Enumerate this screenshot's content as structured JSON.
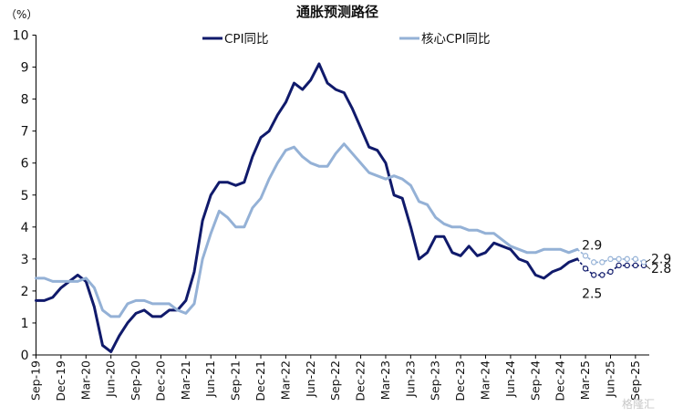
{
  "chart_data": {
    "type": "line",
    "title": "通胀预测路径",
    "unit_label": "（%）",
    "ylim": [
      0,
      10
    ],
    "yticks": [
      0,
      1,
      2,
      3,
      4,
      5,
      6,
      7,
      8,
      9,
      10
    ],
    "x_tick_labels": [
      "Sep-19",
      "Dec-19",
      "Mar-20",
      "Jun-20",
      "Sep-20",
      "Dec-20",
      "Mar-21",
      "Jun-21",
      "Sep-21",
      "Dec-21",
      "Mar-22",
      "Jun-22",
      "Sep-22",
      "Dec-22",
      "Mar-23",
      "Jun-23",
      "Sep-23",
      "Dec-23",
      "Mar-24",
      "Jun-24",
      "Sep-24",
      "Dec-24",
      "Mar-25",
      "Jun-25",
      "Sep-25"
    ],
    "start_month": "Sep-19",
    "legend": {
      "position": "top",
      "entries": [
        "CPI同比",
        "核心CPI同比"
      ]
    },
    "series": [
      {
        "name": "CPI同比",
        "color": "#101a6b",
        "values": [
          1.7,
          1.7,
          1.8,
          2.1,
          2.3,
          2.5,
          2.3,
          1.5,
          0.3,
          0.1,
          0.6,
          1.0,
          1.3,
          1.4,
          1.2,
          1.2,
          1.4,
          1.4,
          1.7,
          2.6,
          4.2,
          5.0,
          5.4,
          5.4,
          5.3,
          5.4,
          6.2,
          6.8,
          7.0,
          7.5,
          7.9,
          8.5,
          8.3,
          8.6,
          9.1,
          8.5,
          8.3,
          8.2,
          7.7,
          7.1,
          6.5,
          6.4,
          6.0,
          5.0,
          4.9,
          4.0,
          3.0,
          3.2,
          3.7,
          3.7,
          3.2,
          3.1,
          3.4,
          3.1,
          3.2,
          3.5,
          3.4,
          3.3,
          3.0,
          2.9,
          2.5,
          2.4,
          2.6,
          2.7,
          2.9,
          3.0
        ],
        "forecast": [
          3.0,
          2.7,
          2.5,
          2.5,
          2.6,
          2.8,
          2.8,
          2.8,
          2.8
        ]
      },
      {
        "name": "核心CPI同比",
        "color": "#94b1d6",
        "values": [
          2.4,
          2.4,
          2.3,
          2.3,
          2.3,
          2.3,
          2.4,
          2.1,
          1.4,
          1.2,
          1.2,
          1.6,
          1.7,
          1.7,
          1.6,
          1.6,
          1.6,
          1.4,
          1.3,
          1.6,
          3.0,
          3.8,
          4.5,
          4.3,
          4.0,
          4.0,
          4.6,
          4.9,
          5.5,
          6.0,
          6.4,
          6.5,
          6.2,
          6.0,
          5.9,
          5.9,
          6.3,
          6.6,
          6.3,
          6.0,
          5.7,
          5.6,
          5.5,
          5.6,
          5.5,
          5.3,
          4.8,
          4.7,
          4.3,
          4.1,
          4.0,
          4.0,
          3.9,
          3.9,
          3.8,
          3.8,
          3.6,
          3.4,
          3.3,
          3.2,
          3.2,
          3.3,
          3.3,
          3.3,
          3.2,
          3.3
        ],
        "forecast": [
          3.3,
          3.1,
          2.9,
          2.9,
          3.0,
          3.0,
          3.0,
          3.0,
          2.9
        ]
      }
    ],
    "annotations": [
      {
        "text": "2.9",
        "series": "核心CPI同比",
        "month_index": 67
      },
      {
        "text": "2.5",
        "series": "CPI同比",
        "month_index": 67
      },
      {
        "text": "2.9",
        "series": "核心CPI同比",
        "month_index": 73
      },
      {
        "text": "2.8",
        "series": "CPI同比",
        "month_index": 73
      }
    ]
  },
  "watermark": "格隆汇"
}
